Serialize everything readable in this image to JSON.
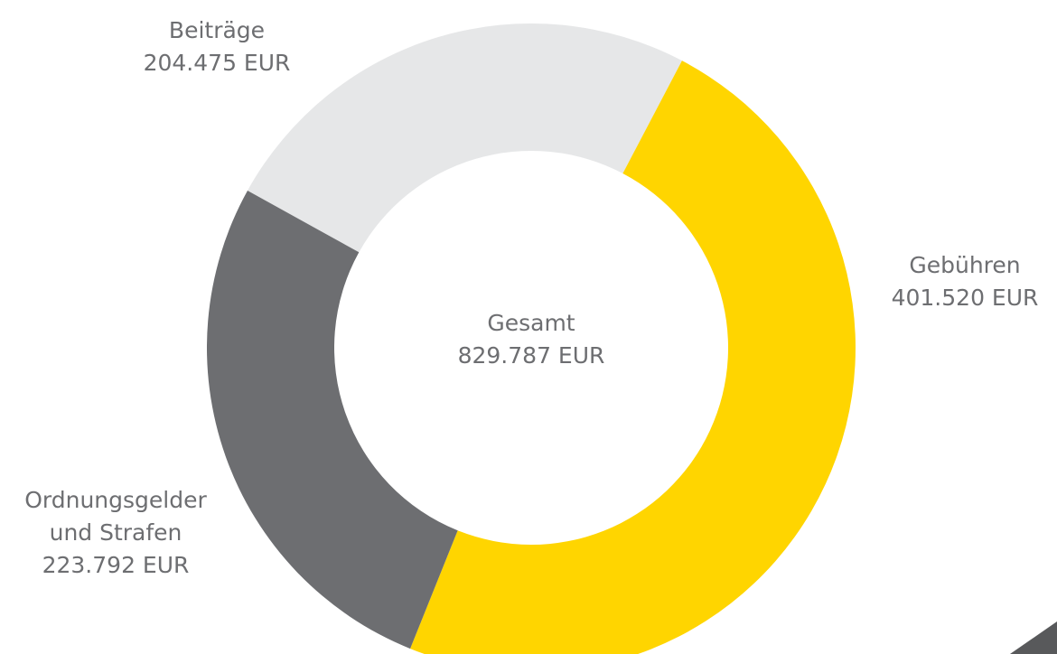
{
  "chart_data": {
    "type": "donut",
    "categories": [
      "Beiträge",
      "Gebühren",
      "Ordnungsgelder und Strafen"
    ],
    "values": [
      204475,
      401520,
      223792
    ],
    "value_labels": [
      "204.475 EUR",
      "401.520 EUR",
      "223.792 EUR"
    ],
    "colors": [
      "#e6e7e8",
      "#ffd500",
      "#6d6e71"
    ],
    "total_title": "Gesamt",
    "total": {
      "value": 829787,
      "label": "829.787 EUR"
    }
  }
}
